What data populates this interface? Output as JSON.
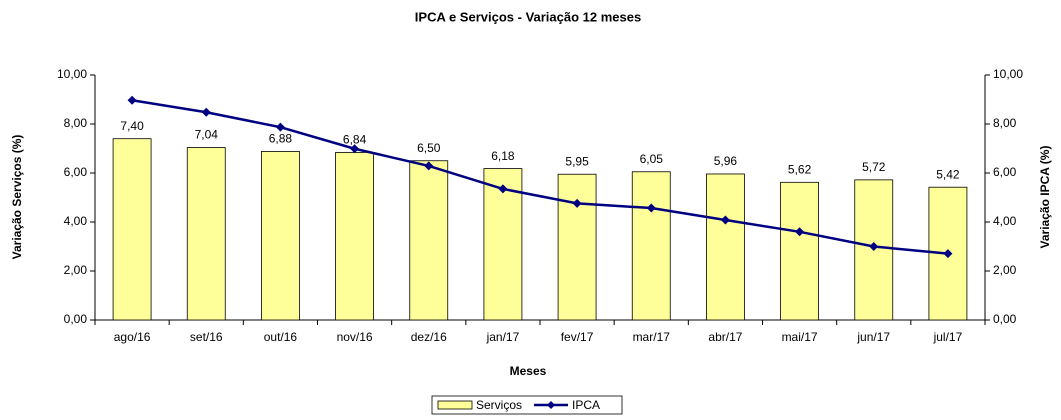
{
  "chart_data": {
    "type": "combo",
    "title": "IPCA e Serviços - Variação 12 meses",
    "x_label": "Meses",
    "y_label": "Variação Serviços (%)",
    "y2_label": "Variação IPCA (%)",
    "categories": [
      "ago/16",
      "set/16",
      "out/16",
      "nov/16",
      "dez/16",
      "jan/17",
      "fev/17",
      "mar/17",
      "abr/17",
      "mai/17",
      "jun/17",
      "jul/17"
    ],
    "series": [
      {
        "name": "Serviços",
        "type": "bar",
        "color": "#ffff99",
        "values": [
          7.4,
          7.04,
          6.88,
          6.84,
          6.5,
          6.18,
          5.95,
          6.05,
          5.96,
          5.62,
          5.72,
          5.42
        ],
        "value_labels": [
          "7,40",
          "7,04",
          "6,88",
          "6,84",
          "6,50",
          "6,18",
          "5,95",
          "6,05",
          "5,96",
          "5,62",
          "5,72",
          "5,42"
        ]
      },
      {
        "name": "IPCA",
        "type": "line",
        "color": "#000080",
        "axis": "y2",
        "values": [
          8.97,
          8.48,
          7.87,
          6.99,
          6.29,
          5.35,
          4.76,
          4.57,
          4.08,
          3.6,
          3.0,
          2.71
        ]
      }
    ],
    "ylim": [
      0,
      10
    ],
    "yticks": [
      {
        "value": 0,
        "label": "0,00"
      },
      {
        "value": 2,
        "label": "2,00"
      },
      {
        "value": 4,
        "label": "4,00"
      },
      {
        "value": 6,
        "label": "6,00"
      },
      {
        "value": 8,
        "label": "8,00"
      },
      {
        "value": 10,
        "label": "10,00"
      }
    ],
    "y2lim": [
      0,
      10
    ],
    "y2ticks": [
      {
        "value": 0,
        "label": "0,00"
      },
      {
        "value": 2,
        "label": "2,00"
      },
      {
        "value": 4,
        "label": "4,00"
      },
      {
        "value": 6,
        "label": "6,00"
      },
      {
        "value": 8,
        "label": "8,00"
      },
      {
        "value": 10,
        "label": "10,00"
      }
    ],
    "legend": "bottom"
  }
}
